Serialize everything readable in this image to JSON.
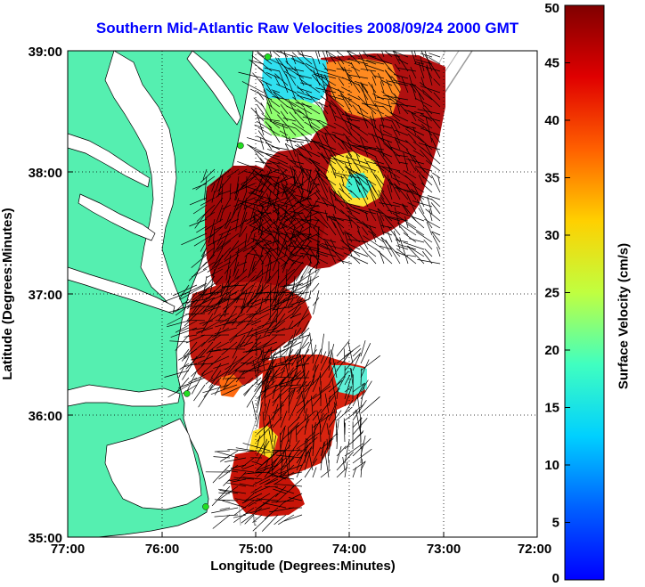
{
  "title": "Southern Mid-Atlantic Raw Velocities 2008/09/24 2000 GMT",
  "xaxis": {
    "label": "Longitude (Degrees:Minutes)",
    "ticks": [
      "77:00",
      "76:00",
      "75:00",
      "74:00",
      "73:00",
      "72:00"
    ],
    "range": [
      -77,
      -72
    ]
  },
  "yaxis": {
    "label": "Latitude (Degrees:Minutes)",
    "ticks": [
      "39:00",
      "38:00",
      "37:00",
      "36:00",
      "35:00"
    ],
    "range": [
      35,
      39
    ]
  },
  "colorbar": {
    "label": "Surface Velocity (cm/s)",
    "ticks": [
      "0",
      "5",
      "10",
      "15",
      "20",
      "25",
      "30",
      "35",
      "40",
      "45",
      "50"
    ],
    "range": [
      0,
      50
    ],
    "colormap": "jet"
  },
  "colors": {
    "land": "#55efb0",
    "coast": "#000000",
    "title": "#0000ff",
    "grid": "#000000",
    "station": "#22dd22"
  },
  "stations": [
    {
      "lon": -74.87,
      "lat": 38.95
    },
    {
      "lon": -75.16,
      "lat": 38.22
    },
    {
      "lon": -75.73,
      "lat": 36.18
    },
    {
      "lon": -75.53,
      "lat": 35.25
    }
  ]
}
